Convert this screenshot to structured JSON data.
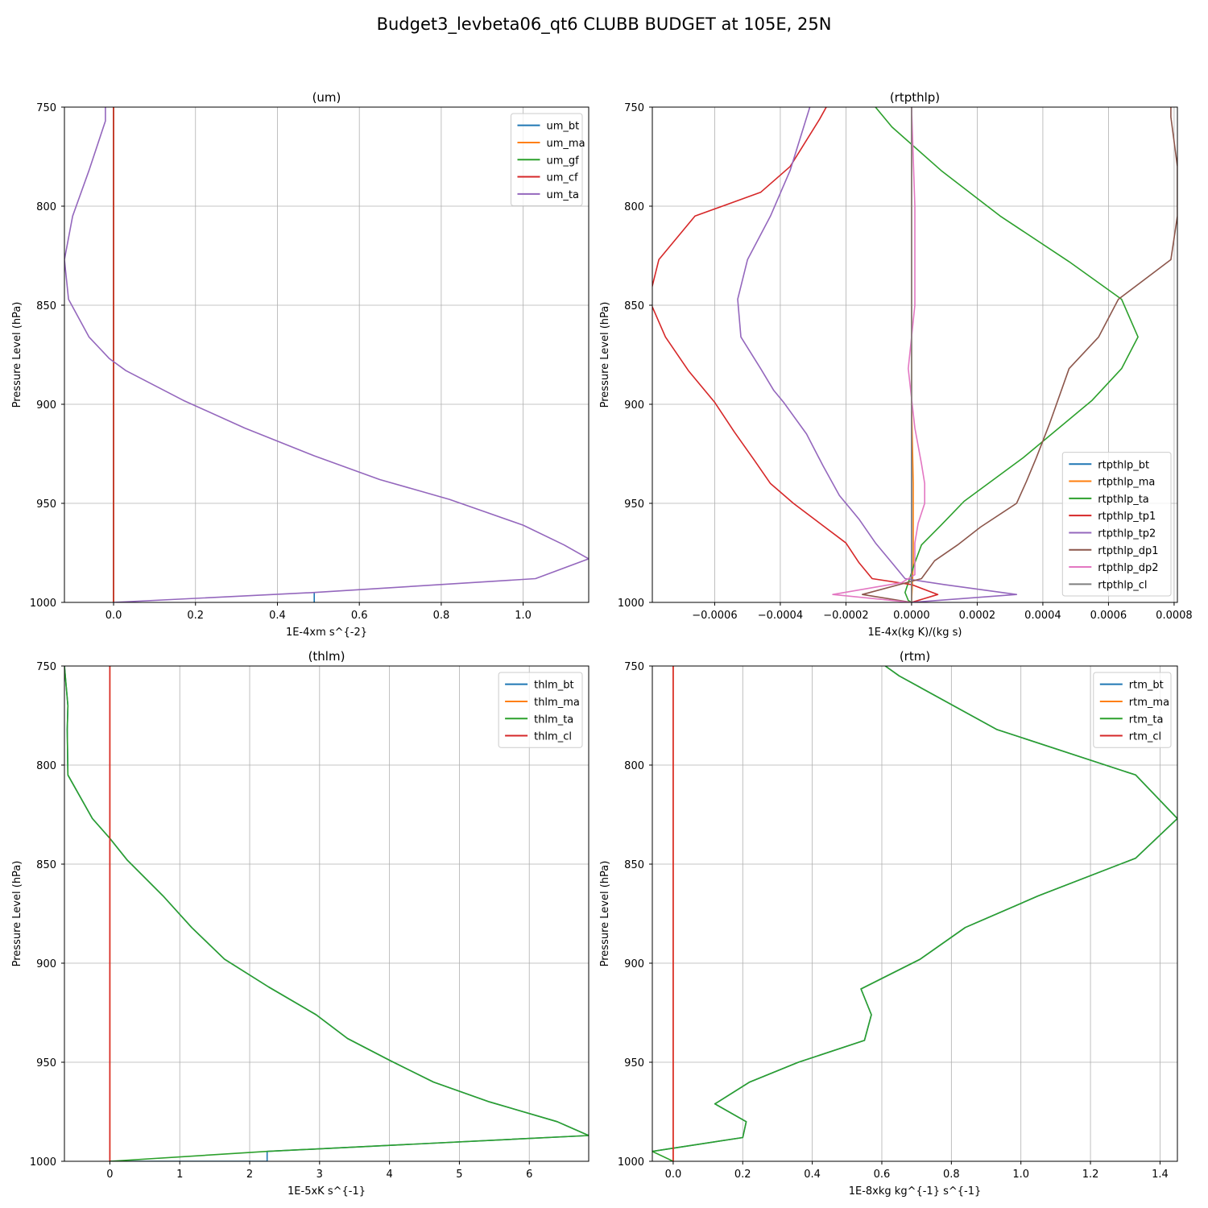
{
  "figure_title": "Budget3_levbeta06_qt6 CLUBB BUDGET at 105E, 25N",
  "colors": [
    "#1f77b4",
    "#ff7f0e",
    "#2ca02c",
    "#d62728",
    "#9467bd",
    "#8c564b",
    "#e377c2",
    "#7f7f7f"
  ],
  "chart_data": [
    {
      "type": "line",
      "title": "(um)",
      "xlabel": "1E-4xm s^{-2}",
      "ylabel": "Pressure Level (hPa)",
      "xlim": [
        -0.12,
        1.16
      ],
      "ylim": [
        1000,
        750
      ],
      "y_inverted": true,
      "grid": true,
      "legend_position": "upper right",
      "xticks": [
        "0.0",
        "0.2",
        "0.4",
        "0.6",
        "0.8",
        "1.0"
      ],
      "xtick_values": [
        0,
        0.2,
        0.4,
        0.6,
        0.8,
        1.0
      ],
      "yticks": [
        750,
        800,
        850,
        900,
        950,
        1000
      ],
      "series": [
        {
          "name": "um_bt",
          "color": "#1f77b4",
          "x": [
            0.49,
            0.49
          ],
          "y": [
            1000,
            995
          ]
        },
        {
          "name": "um_ma",
          "color": "#ff7f0e",
          "x": [
            0,
            0
          ],
          "y": [
            750,
            1000
          ]
        },
        {
          "name": "um_gf",
          "color": "#2ca02c",
          "x": [
            0,
            0
          ],
          "y": [
            750,
            1000
          ]
        },
        {
          "name": "um_cf",
          "color": "#d62728",
          "x": [
            0,
            0
          ],
          "y": [
            750,
            1000
          ]
        },
        {
          "name": "um_ta",
          "color": "#9467bd",
          "x": [
            -0.02,
            -0.02,
            -0.06,
            -0.1,
            -0.12,
            -0.11,
            -0.06,
            -0.01,
            0.03,
            0.17,
            0.32,
            0.49,
            0.65,
            0.82,
            1.0,
            1.1,
            1.16,
            1.03,
            0.49,
            0.0
          ],
          "y": [
            750,
            757,
            782,
            805,
            827,
            847,
            866,
            877,
            883,
            898,
            912,
            926,
            938,
            948,
            961,
            971,
            978,
            988,
            995,
            1000
          ]
        }
      ]
    },
    {
      "type": "line",
      "title": "(rtpthlp)",
      "xlabel": "1E-4x(kg K)/(kg s)",
      "ylabel": "Pressure Level (hPa)",
      "xlim": [
        -0.00079,
        0.00081
      ],
      "ylim": [
        1000,
        750
      ],
      "y_inverted": true,
      "grid": true,
      "legend_position": "lower right",
      "xticks": [
        "−0.0006",
        "−0.0004",
        "−0.0002",
        "0.0000",
        "0.0002",
        "0.0004",
        "0.0006",
        "0.0008"
      ],
      "xtick_values": [
        -0.0006,
        -0.0004,
        -0.0002,
        0,
        0.0002,
        0.0004,
        0.0006,
        0.0008
      ],
      "yticks": [
        750,
        800,
        850,
        900,
        950,
        1000
      ],
      "series": [
        {
          "name": "rtpthlp_bt",
          "color": "#1f77b4",
          "x": [
            0,
            0
          ],
          "y": [
            750,
            1000
          ]
        },
        {
          "name": "rtpthlp_ma",
          "color": "#ff7f0e",
          "x": [
            0,
            0,
            5e-06,
            5e-06,
            0
          ],
          "y": [
            750,
            900,
            940,
            980,
            1000
          ]
        },
        {
          "name": "rtpthlp_ta",
          "color": "#2ca02c",
          "x": [
            -0.00011,
            -6e-05,
            9e-05,
            0.00027,
            0.00048,
            0.00064,
            0.00069,
            0.00064,
            0.00055,
            0.00034,
            0.00016,
            9e-05,
            3e-05,
            1e-05,
            -2e-05,
            -1e-05,
            0.0
          ],
          "y": [
            750,
            760,
            782,
            805,
            828,
            847,
            866,
            882,
            898,
            927,
            949,
            961,
            971,
            980,
            995,
            999,
            1000
          ]
        },
        {
          "name": "rtpthlp_tp1",
          "color": "#d62728",
          "x": [
            -0.00026,
            -0.00028,
            -0.00037,
            -0.00046,
            -0.00066,
            -0.00077,
            -0.0008,
            -0.00075,
            -0.00068,
            -0.0006,
            -0.00054,
            -0.00048,
            -0.00043,
            -0.00036,
            -0.00028,
            -0.0002,
            -0.00016,
            -0.00012,
            0.0,
            8e-05,
            0.0
          ],
          "y": [
            750,
            756,
            780,
            793,
            805,
            827,
            847,
            866,
            883,
            899,
            914,
            928,
            940,
            950,
            960,
            970,
            980,
            988,
            991,
            996,
            1000
          ]
        },
        {
          "name": "rtpthlp_tp2",
          "color": "#9467bd",
          "x": [
            -0.00031,
            -0.00037,
            -0.00043,
            -0.0005,
            -0.00053,
            -0.00052,
            -0.00046,
            -0.00042,
            -0.00039,
            -0.00032,
            -0.00027,
            -0.00022,
            -0.00016,
            -0.00011,
            -6e-05,
            -2e-05,
            0.0001,
            0.00032,
            0.0
          ],
          "y": [
            750,
            782,
            805,
            827,
            847,
            866,
            882,
            893,
            899,
            915,
            931,
            946,
            958,
            970,
            980,
            988,
            991,
            996,
            1000
          ]
        },
        {
          "name": "rtpthlp_dp1",
          "color": "#8c564b",
          "x": [
            0.00079,
            0.00079,
            0.00081,
            0.00081,
            0.00079,
            0.00063,
            0.00057,
            0.00048,
            0.00042,
            0.00038,
            0.00035,
            0.00032,
            0.00021,
            0.00014,
            7e-05,
            3e-05,
            -0.00015,
            0.0
          ],
          "y": [
            750,
            755,
            780,
            805,
            827,
            847,
            866,
            882,
            910,
            927,
            939,
            950,
            962,
            971,
            979,
            988,
            996,
            1000
          ]
        },
        {
          "name": "rtpthlp_dp2",
          "color": "#e377c2",
          "x": [
            0,
            1e-05,
            1e-05,
            1e-05,
            0.0,
            -1e-05,
            1e-05,
            3e-05,
            4e-05,
            4e-05,
            2e-05,
            1e-05,
            1e-05,
            1e-05,
            -3e-05,
            -0.00024,
            0.0
          ],
          "y": [
            750,
            800,
            827,
            850,
            866,
            882,
            912,
            930,
            940,
            950,
            960,
            970,
            980,
            986,
            990,
            996,
            1000
          ]
        },
        {
          "name": "rtpthlp_cl",
          "color": "#7f7f7f",
          "x": [
            0,
            0
          ],
          "y": [
            750,
            1000
          ]
        }
      ]
    },
    {
      "type": "line",
      "title": "(thlm)",
      "xlabel": "1E-5xK s^{-1}",
      "ylabel": "Pressure Level (hPa)",
      "xlim": [
        -0.65,
        6.85
      ],
      "ylim": [
        1000,
        750
      ],
      "y_inverted": true,
      "grid": true,
      "legend_position": "upper right",
      "xticks": [
        "0",
        "1",
        "2",
        "3",
        "4",
        "5",
        "6"
      ],
      "xtick_values": [
        0,
        1,
        2,
        3,
        4,
        5,
        6
      ],
      "yticks": [
        750,
        800,
        850,
        900,
        950,
        1000
      ],
      "series": [
        {
          "name": "thlm_bt",
          "color": "#1f77b4",
          "x": [
            -0.65,
            -0.6,
            -0.61,
            -0.6,
            -0.25,
            0.0,
            0.25,
            0.76,
            1.17,
            1.64,
            2.27,
            2.95,
            3.4,
            4.0,
            4.63,
            5.43,
            6.4,
            6.85,
            2.25,
            2.25,
            2.25,
            0.0
          ],
          "y": [
            750,
            770,
            782,
            805,
            827,
            837,
            848,
            866,
            882,
            898,
            912,
            926,
            938,
            949,
            960,
            970,
            980,
            987,
            995,
            995,
            1000,
            1000
          ]
        },
        {
          "name": "thlm_ma",
          "color": "#ff7f0e",
          "x": [
            0,
            0
          ],
          "y": [
            750,
            1000
          ]
        },
        {
          "name": "thlm_ta",
          "color": "#2ca02c",
          "x": [
            -0.65,
            -0.6,
            -0.61,
            -0.6,
            -0.25,
            0.0,
            0.25,
            0.76,
            1.17,
            1.64,
            2.27,
            2.95,
            3.4,
            4.0,
            4.63,
            5.43,
            6.4,
            6.85,
            2.25,
            0.0
          ],
          "y": [
            750,
            770,
            782,
            805,
            827,
            837,
            848,
            866,
            882,
            898,
            912,
            926,
            938,
            949,
            960,
            970,
            980,
            987,
            995,
            1000
          ]
        },
        {
          "name": "thlm_cl",
          "color": "#d62728",
          "x": [
            0,
            0
          ],
          "y": [
            750,
            1000
          ]
        }
      ]
    },
    {
      "type": "line",
      "title": "(rtm)",
      "xlabel": "1E-8xkg kg^{-1} s^{-1}",
      "ylabel": "Pressure Level (hPa)",
      "xlim": [
        -0.06,
        1.45
      ],
      "ylim": [
        1000,
        750
      ],
      "y_inverted": true,
      "grid": true,
      "legend_position": "upper right",
      "xticks": [
        "0.0",
        "0.2",
        "0.4",
        "0.6",
        "0.8",
        "1.0",
        "1.2",
        "1.4"
      ],
      "xtick_values": [
        0,
        0.2,
        0.4,
        0.6,
        0.8,
        1.0,
        1.2,
        1.4
      ],
      "yticks": [
        750,
        800,
        850,
        900,
        950,
        1000
      ],
      "series": [
        {
          "name": "rtm_bt",
          "color": "#1f77b4",
          "x": [
            0.61,
            0.65,
            0.93,
            1.33,
            1.45,
            1.33,
            1.05,
            0.84,
            0.71,
            0.54,
            0.57,
            0.55,
            0.36,
            0.22,
            0.12,
            0.21,
            0.2,
            -0.06
          ],
          "y": [
            750,
            755,
            782,
            805,
            827,
            847,
            866,
            882,
            898,
            913,
            926,
            939,
            950,
            960,
            971,
            980,
            988,
            995
          ]
        },
        {
          "name": "rtm_ma",
          "color": "#ff7f0e",
          "x": [
            0,
            0
          ],
          "y": [
            750,
            1000
          ]
        },
        {
          "name": "rtm_ta",
          "color": "#2ca02c",
          "x": [
            0.61,
            0.65,
            0.93,
            1.33,
            1.45,
            1.33,
            1.05,
            0.84,
            0.71,
            0.54,
            0.57,
            0.55,
            0.36,
            0.22,
            0.12,
            0.21,
            0.2,
            -0.06,
            0.0
          ],
          "y": [
            750,
            755,
            782,
            805,
            827,
            847,
            866,
            882,
            898,
            913,
            926,
            939,
            950,
            960,
            971,
            980,
            988,
            995,
            1000
          ]
        },
        {
          "name": "rtm_cl",
          "color": "#d62728",
          "x": [
            0,
            0
          ],
          "y": [
            750,
            1000
          ]
        }
      ]
    }
  ]
}
